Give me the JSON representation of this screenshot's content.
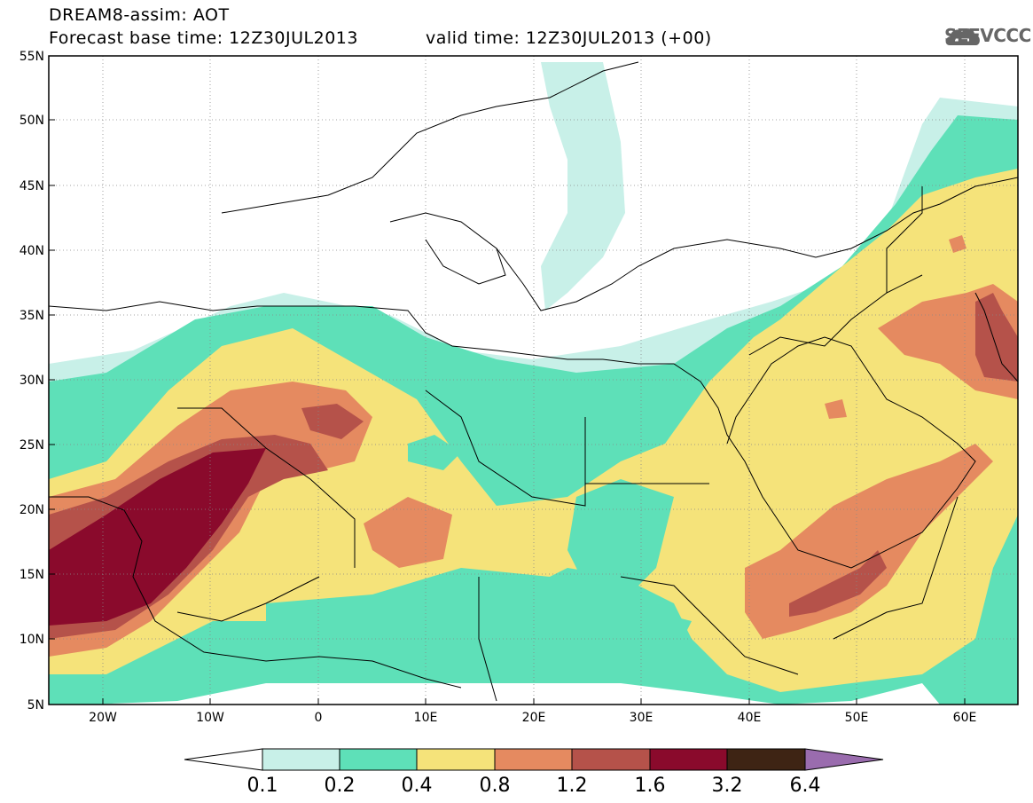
{
  "header": {
    "title": "DREAM8-assim: AOT",
    "base_time": "Forecast base time: 12Z30JUL2013",
    "valid_time": "valid time: 12Z30JUL2013 (+00)",
    "logo_text": "SEEVCCC"
  },
  "map": {
    "lat_labels": [
      "55N",
      "50N",
      "45N",
      "40N",
      "35N",
      "30N",
      "25N",
      "20N",
      "15N",
      "10N",
      "5N"
    ],
    "lon_labels": [
      "20W",
      "10W",
      "0",
      "10E",
      "20E",
      "30E",
      "40E",
      "50E",
      "60E"
    ],
    "lat_range": [
      5,
      55
    ],
    "lon_range": [
      -25,
      65
    ]
  },
  "colorbar": {
    "labels": [
      "0.1",
      "0.2",
      "0.4",
      "0.8",
      "1.2",
      "1.6",
      "3.2",
      "6.4"
    ],
    "colors": [
      "#ffffff",
      "#c8f0e8",
      "#5ee0b8",
      "#f5e37a",
      "#e58a60",
      "#b5524a",
      "#8a0a2c",
      "#3e2414",
      "#9a6cae"
    ]
  }
}
